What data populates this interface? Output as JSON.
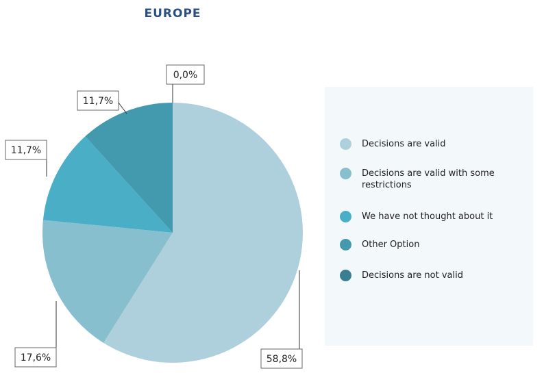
{
  "chart_data": {
    "type": "pie",
    "title": "EUROPE",
    "categories": [
      "Decisions are valid",
      "Decisions are valid with some restrictions",
      "We have not thought about it",
      "Other Option",
      "Decisions are not valid"
    ],
    "values": [
      58.8,
      17.6,
      11.7,
      11.7,
      0.0
    ],
    "value_labels": [
      "58,8%",
      "17,6%",
      "11,7%",
      "11,7%",
      "0,0%"
    ],
    "colors": [
      "#aed0dc",
      "#88bfcf",
      "#4aafc6",
      "#4399ad",
      "#3a7f91"
    ],
    "legend": "right"
  }
}
